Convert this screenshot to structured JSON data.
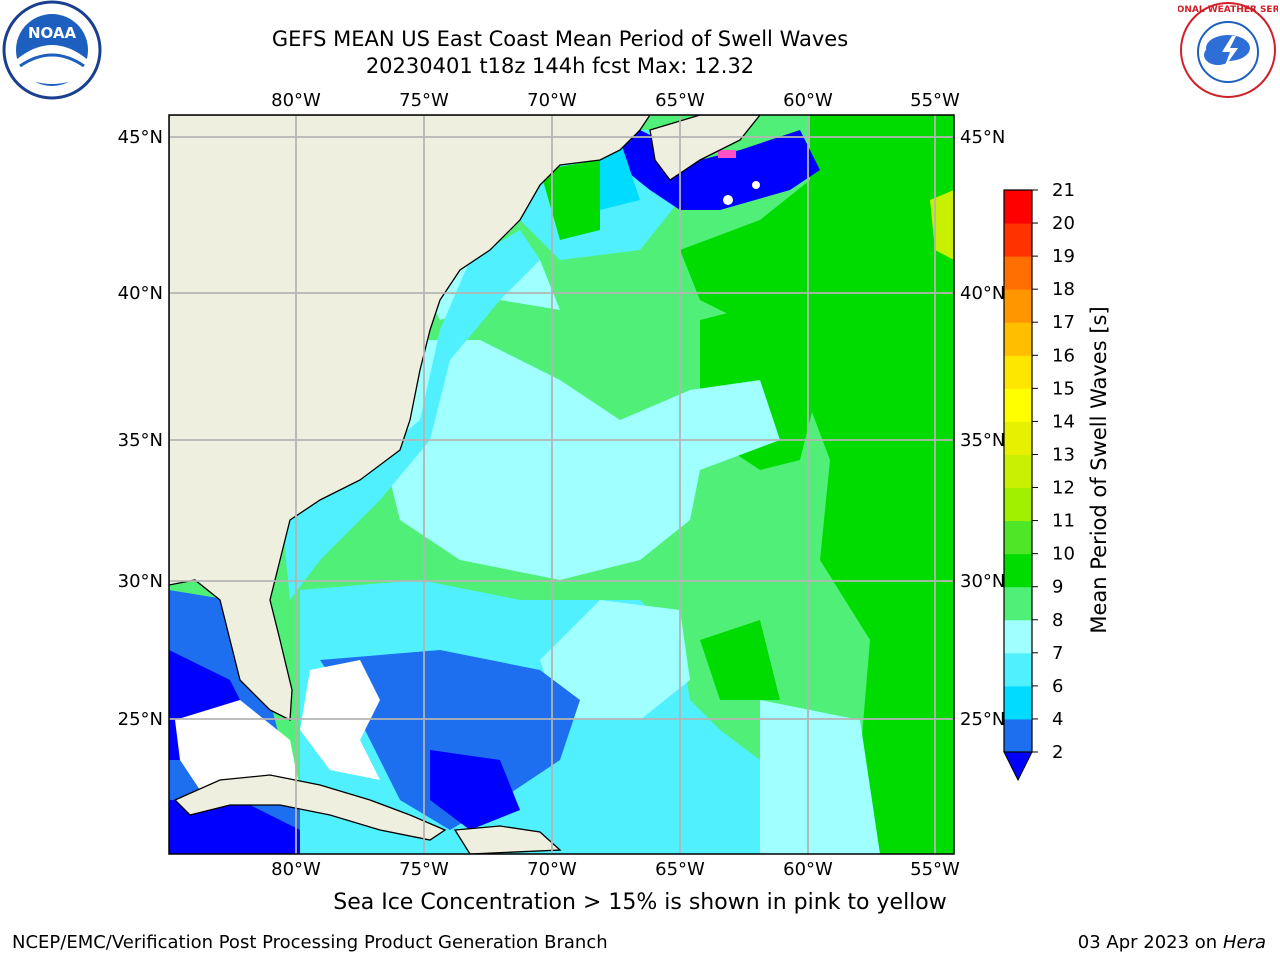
{
  "title": {
    "line1": "GEFS MEAN US East Coast Mean Period of Swell Waves",
    "line2": "20230401 t18z 144h fcst   Max: 12.32"
  },
  "map": {
    "lon_labels": [
      "80°W",
      "75°W",
      "70°W",
      "65°W",
      "60°W",
      "55°W"
    ],
    "lat_labels": [
      "45°N",
      "40°N",
      "35°N",
      "30°N",
      "25°N"
    ]
  },
  "colorbar": {
    "label": "Mean Period of Swell Waves [s]",
    "ticks": [
      "2",
      "4",
      "6",
      "7",
      "8",
      "9",
      "10",
      "11",
      "12",
      "13",
      "14",
      "15",
      "16",
      "17",
      "18",
      "19",
      "20",
      "21"
    ],
    "colors": [
      "#1e6ef0",
      "#00dcff",
      "#50f0ff",
      "#a0ffff",
      "#50f078",
      "#00dc00",
      "#50e628",
      "#a0f000",
      "#c8f000",
      "#e6f000",
      "#ffff00",
      "#ffe600",
      "#ffbe00",
      "#ff9600",
      "#ff6e00",
      "#ff3200",
      "#ff0000"
    ],
    "extend_color": "#0000ff"
  },
  "ice_note": "Sea Ice Concentration > 15% is shown in pink to yellow",
  "footer": {
    "left": "NCEP/EMC/Verification Post Processing Product Generation Branch",
    "right_prefix": "03 Apr 2023 on ",
    "right_host": "Hera"
  },
  "logos": {
    "noaa_text": "NOAA",
    "nws_text": "NATIONAL WEATHER SERVICE"
  }
}
